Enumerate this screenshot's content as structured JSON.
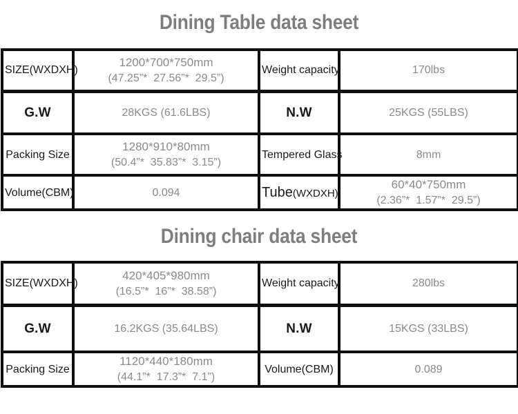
{
  "colors": {
    "border": "#0f0f0f",
    "label_text": "#1a1a1a",
    "value_text": "#8a8a8a",
    "title_text": "#7e7e7e",
    "background": "#ffffff"
  },
  "tables": [
    {
      "title": "Dining Table data sheet",
      "rows": [
        [
          {
            "kind": "label",
            "lines": [
              "SIZE(WXDXH)"
            ]
          },
          {
            "kind": "value",
            "lines": [
              "1200*700*750mm",
              "(47.25”*  27.56”*  29.5”)"
            ]
          },
          {
            "kind": "label",
            "lines": [
              "Weight capacity"
            ]
          },
          {
            "kind": "value",
            "lines": [
              "170lbs"
            ]
          }
        ],
        [
          {
            "kind": "label",
            "big": true,
            "lines": [
              "G.W"
            ]
          },
          {
            "kind": "value",
            "lines": [
              "28KGS (61.6LBS)"
            ]
          },
          {
            "kind": "label",
            "big": true,
            "lines": [
              "N.W"
            ]
          },
          {
            "kind": "value",
            "lines": [
              "25KGS (55LBS)"
            ]
          }
        ],
        [
          {
            "kind": "label",
            "lines": [
              "Packing Size"
            ]
          },
          {
            "kind": "value",
            "lines": [
              "1280*910*80mm",
              "(50.4”*  35.83”*  3.15”)"
            ]
          },
          {
            "kind": "label",
            "lines": [
              "Tempered Glass"
            ]
          },
          {
            "kind": "value",
            "lines": [
              "8mm"
            ]
          }
        ],
        [
          {
            "kind": "label",
            "lines": [
              "Volume(CBM)"
            ]
          },
          {
            "kind": "value",
            "lines": [
              "0.094"
            ]
          },
          {
            "kind": "label",
            "parts": [
              {
                "text": "Tube",
                "size": "big"
              },
              {
                "text": "(WXDXH)",
                "size": "small"
              }
            ]
          },
          {
            "kind": "value",
            "lines": [
              "60*40*750mm",
              "(2.36”*  1.57”*  29.5”)"
            ]
          }
        ]
      ]
    },
    {
      "title": "Dining chair data sheet",
      "rows": [
        [
          {
            "kind": "label",
            "lines": [
              "SIZE(WXDXH)"
            ]
          },
          {
            "kind": "value",
            "lines": [
              "420*405*980mm",
              "(16.5”*  16”*  38.58”)"
            ]
          },
          {
            "kind": "label",
            "lines": [
              "Weight capacity"
            ]
          },
          {
            "kind": "value",
            "lines": [
              "280lbs"
            ]
          }
        ],
        [
          {
            "kind": "label",
            "big": true,
            "lines": [
              "G.W"
            ]
          },
          {
            "kind": "value",
            "lines": [
              "16.2KGS (35.64LBS)"
            ]
          },
          {
            "kind": "label",
            "big": true,
            "lines": [
              "N.W"
            ]
          },
          {
            "kind": "value",
            "lines": [
              "15KGS (33LBS)"
            ]
          }
        ],
        [
          {
            "kind": "label",
            "lines": [
              "Packing Size"
            ]
          },
          {
            "kind": "value",
            "lines": [
              "1120*440*180mm",
              "(44.1”*  17.3”*  7.1”)"
            ]
          },
          {
            "kind": "label",
            "lines": [
              "Volume(CBM)"
            ]
          },
          {
            "kind": "value",
            "lines": [
              "0.089"
            ]
          }
        ]
      ]
    }
  ]
}
